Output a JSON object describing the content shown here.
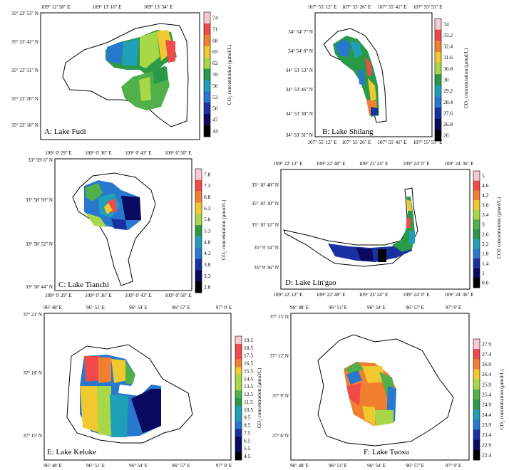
{
  "chart_data": [
    {
      "type": "heatmap",
      "panel_label": "A: Lake Fudi",
      "x_ticks": [
        "109° 12' 58\" E",
        "109° 13' 16\" E",
        "109° 13' 34\" E"
      ],
      "y_ticks": [
        "35° 23' 53\" N",
        "35° 23' 42\" N",
        "35° 23' 31\" N",
        "35° 23' 20\" N",
        "35° 23' 10\" N"
      ],
      "colorbar_title": "CO₂ concentration (μmol/L)",
      "colorbar_ticks": [
        "74",
        "71",
        "68",
        "65",
        "62",
        "59",
        "56",
        "53",
        "50",
        "47",
        "44"
      ],
      "colors": [
        "#f7c9d0",
        "#f04a4a",
        "#f08030",
        "#f0c830",
        "#a8d848",
        "#52b04a",
        "#2a9a48",
        "#20a0b8",
        "#2878d0",
        "#1830a0",
        "#0a0a60",
        "#000000"
      ]
    },
    {
      "type": "heatmap",
      "panel_label": "B: Lake Shilang",
      "x_ticks": [
        "107° 55' 12\" E",
        "107° 55' 26\" E",
        "107° 55' 41\" E",
        "107° 55' 55\" E"
      ],
      "y_ticks": [
        "34° 54' 7\" N",
        "34° 54' 0\" N",
        "34° 53' 53\" N",
        "34° 53' 46\" N",
        "34° 53' 38\" N",
        "34° 53' 31\" N"
      ],
      "colorbar_title": "CO₂ concentration (μmol/L)",
      "colorbar_ticks": [
        "34",
        "33.2",
        "32.4",
        "31.6",
        "30.8",
        "30",
        "29.2",
        "28.4",
        "27.6",
        "26.8",
        "26"
      ]
    },
    {
      "type": "heatmap",
      "panel_label": "C: Lake Tianchi",
      "x_ticks": [
        "109° 0' 29\" E",
        "109° 0' 36\" E",
        "109° 0' 43\" E",
        "109° 0' 50\" E"
      ],
      "y_ticks": [
        "33° 59' 6\" N",
        "33° 58' 59\" N",
        "33° 58' 52\" N",
        "33° 58' 44\" N"
      ],
      "colorbar_title": "CO₂ concentration (μmol/L)",
      "colorbar_ticks": [
        "7.8",
        "7.3",
        "6.8",
        "6.3",
        "5.8",
        "5.3",
        "4.8",
        "4.3",
        "3.8",
        "3.3",
        "2.8"
      ]
    },
    {
      "type": "heatmap",
      "panel_label": "D: Lake Lin'gao",
      "x_ticks": [
        "109° 22' 12\" E",
        "109° 22' 48\" E",
        "109° 23' 24\" E",
        "109° 24' 0\" E",
        "109° 24' 36\" E"
      ],
      "y_ticks": [
        "35° 10' 48\" N",
        "35° 10' 30\" N",
        "35° 10' 12\" N",
        "35° 9' 54\" N",
        "35° 9' 36\" N"
      ],
      "colorbar_title": "CO2 concentration (μmol/L)",
      "colorbar_ticks": [
        "5",
        "4.6",
        "4.2",
        "3.8",
        "3.4",
        "3",
        "2.6",
        "2.2",
        "1.8",
        "1.4",
        "1",
        "0.6"
      ]
    },
    {
      "type": "heatmap",
      "panel_label": "E: Lake Keluke",
      "x_ticks": [
        "96° 48' E",
        "96° 51' E",
        "96° 54' E",
        "96° 57' E",
        "97° 0' E"
      ],
      "y_ticks": [
        "37° 21' N",
        "37° 18' N",
        "37° 15' N"
      ],
      "colorbar_title": "CO₂ concentration (μmol/L)",
      "colorbar_ticks": [
        "19.5",
        "18.5",
        "17.5",
        "16.5",
        "15.5",
        "14.5",
        "13.5",
        "12.5",
        "11.5",
        "10.5",
        "9.5",
        "8.5",
        "7.5",
        "6.5",
        "5.5",
        "4.5"
      ]
    },
    {
      "type": "heatmap",
      "panel_label": "F: Lake Tuosu",
      "x_ticks": [
        "96° 48' E",
        "96° 51' E",
        "96° 54' E",
        "96° 57' E",
        "97° 0' E"
      ],
      "y_ticks": [
        "37° 15' N",
        "37° 12' N",
        "37° 9' N",
        "37° 6' N"
      ],
      "colorbar_title": "CO₂ concentration (μmol/L)",
      "colorbar_ticks": [
        "27.9",
        "27.4",
        "26.9",
        "26.4",
        "25.9",
        "25.4",
        "24.9",
        "24.4",
        "23.9",
        "23.4",
        "22.9",
        "22.4"
      ]
    }
  ]
}
